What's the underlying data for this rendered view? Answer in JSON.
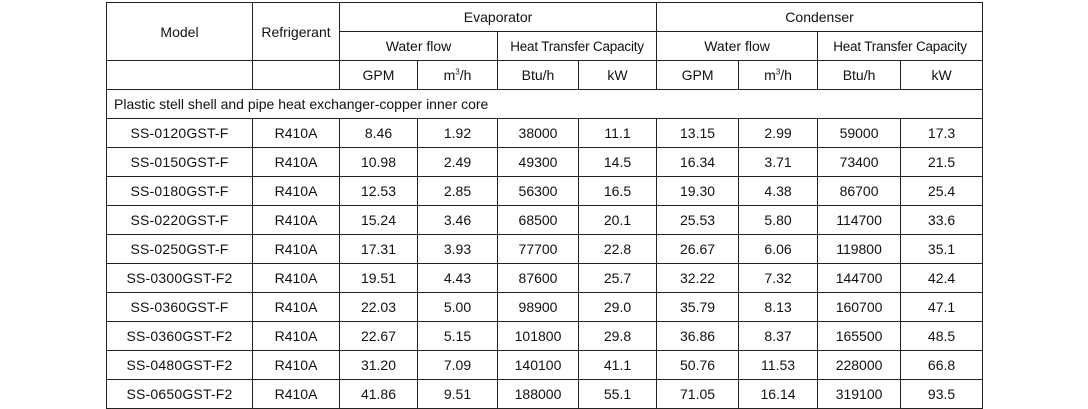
{
  "table": {
    "header": {
      "model": "Model",
      "refrigerant": "Refrigerant",
      "evaporator": "Evaporator",
      "condenser": "Condenser",
      "water_flow": "Water flow",
      "heat_transfer_capacity": "Heat Transfer Capacity",
      "units": {
        "gpm": "GPM",
        "m3h_base": "m",
        "m3h_sup": "3",
        "m3h_tail": "/h",
        "btuh": "Btu/h",
        "kw": "kW"
      }
    },
    "section_title": "Plastic stell shell and pipe heat exchanger-copper inner core",
    "rows": [
      [
        "SS-0120GST-F",
        "R410A",
        "8.46",
        "1.92",
        "38000",
        "11.1",
        "13.15",
        "2.99",
        "59000",
        "17.3"
      ],
      [
        "SS-0150GST-F",
        "R410A",
        "10.98",
        "2.49",
        "49300",
        "14.5",
        "16.34",
        "3.71",
        "73400",
        "21.5"
      ],
      [
        "SS-0180GST-F",
        "R410A",
        "12.53",
        "2.85",
        "56300",
        "16.5",
        "19.30",
        "4.38",
        "86700",
        "25.4"
      ],
      [
        "SS-0220GST-F",
        "R410A",
        "15.24",
        "3.46",
        "68500",
        "20.1",
        "25.53",
        "5.80",
        "114700",
        "33.6"
      ],
      [
        "SS-0250GST-F",
        "R410A",
        "17.31",
        "3.93",
        "77700",
        "22.8",
        "26.67",
        "6.06",
        "119800",
        "35.1"
      ],
      [
        "SS-0300GST-F2",
        "R410A",
        "19.51",
        "4.43",
        "87600",
        "25.7",
        "32.22",
        "7.32",
        "144700",
        "42.4"
      ],
      [
        "SS-0360GST-F",
        "R410A",
        "22.03",
        "5.00",
        "98900",
        "29.0",
        "35.79",
        "8.13",
        "160700",
        "47.1"
      ],
      [
        "SS-0360GST-F2",
        "R410A",
        "22.67",
        "5.15",
        "101800",
        "29.8",
        "36.86",
        "8.37",
        "165500",
        "48.5"
      ],
      [
        "SS-0480GST-F2",
        "R410A",
        "31.20",
        "7.09",
        "140100",
        "41.1",
        "50.76",
        "11.53",
        "228000",
        "66.8"
      ],
      [
        "SS-0650GST-F2",
        "R410A",
        "41.86",
        "9.51",
        "188000",
        "55.1",
        "71.05",
        "16.14",
        "319100",
        "93.5"
      ]
    ]
  }
}
